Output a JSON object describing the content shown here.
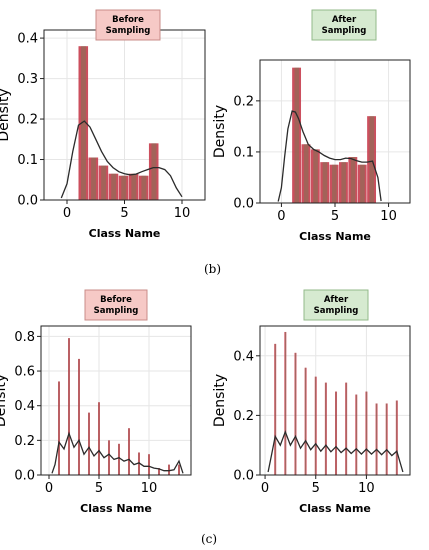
{
  "figure": {
    "panel_labels": [
      "(b)",
      "(c)"
    ]
  },
  "colors": {
    "before_badge_bg": "#f6c9c6",
    "before_badge_border": "#c98c88",
    "after_badge_bg": "#d6ead0",
    "after_badge_border": "#93b98a",
    "bar_fill": "#c73c4d",
    "bar_overlay": "#6f7d55",
    "kde_line": "#2b2b2b",
    "grid": "#e6e6e6",
    "axis": "#222222"
  },
  "chart_data": [
    {
      "id": "b-before",
      "type": "bar",
      "badge": "Before\nSampling",
      "badge_style": "before",
      "xlabel": "Class Name",
      "ylabel": "Density",
      "xlim": [
        -2,
        12
      ],
      "ylim": [
        0,
        0.42
      ],
      "xticks": [
        0,
        5,
        10
      ],
      "yticks": [
        0.0,
        0.1,
        0.2,
        0.3,
        0.4
      ],
      "ytick_labels": [
        "0.0",
        "0.1",
        "0.2",
        "0.3",
        "0.4"
      ],
      "bin_edges": [
        1,
        1.875,
        2.75,
        3.625,
        4.5,
        5.375,
        6.25,
        7.125,
        8,
        8.875
      ],
      "values": [
        0.38,
        0.105,
        0.085,
        0.065,
        0.06,
        0.065,
        0.06,
        0.14,
        0
      ],
      "kde": {
        "x": [
          -0.5,
          0,
          0.5,
          1,
          1.5,
          2,
          2.5,
          3,
          3.5,
          4,
          4.5,
          5,
          5.5,
          6,
          6.5,
          7,
          7.5,
          8,
          8.5,
          9,
          9.5,
          10
        ],
        "y": [
          0.005,
          0.04,
          0.12,
          0.185,
          0.195,
          0.18,
          0.15,
          0.12,
          0.095,
          0.08,
          0.07,
          0.065,
          0.062,
          0.064,
          0.07,
          0.075,
          0.08,
          0.08,
          0.075,
          0.06,
          0.03,
          0.008
        ]
      }
    },
    {
      "id": "b-after",
      "type": "bar",
      "badge": "After\nSampling",
      "badge_style": "after",
      "xlabel": "Class Name",
      "ylabel": "Density",
      "xlim": [
        -2,
        12
      ],
      "ylim": [
        0,
        0.28
      ],
      "xticks": [
        0,
        5,
        10
      ],
      "yticks": [
        0.0,
        0.1,
        0.2
      ],
      "ytick_labels": [
        "0.0",
        "0.1",
        "0.2"
      ],
      "bin_edges": [
        1,
        1.875,
        2.75,
        3.625,
        4.5,
        5.375,
        6.25,
        7.125,
        8,
        8.875
      ],
      "values": [
        0.265,
        0.115,
        0.105,
        0.08,
        0.075,
        0.08,
        0.09,
        0.075,
        0.17
      ],
      "kde": {
        "x": [
          -0.3,
          0,
          0.3,
          0.6,
          1,
          1.3,
          1.6,
          2,
          2.5,
          3,
          3.5,
          4,
          4.5,
          5,
          5.5,
          6,
          6.5,
          7,
          7.5,
          8,
          8.5,
          9,
          9.3
        ],
        "y": [
          0.003,
          0.03,
          0.09,
          0.145,
          0.18,
          0.178,
          0.165,
          0.14,
          0.115,
          0.105,
          0.1,
          0.093,
          0.088,
          0.085,
          0.085,
          0.088,
          0.087,
          0.083,
          0.08,
          0.08,
          0.082,
          0.05,
          0.004
        ]
      }
    },
    {
      "id": "c-before",
      "type": "bar",
      "badge": "Before\nSampling",
      "badge_style": "before",
      "xlabel": "Class Name",
      "ylabel": "Density",
      "xlim": [
        -0.8,
        14.2
      ],
      "ylim": [
        0,
        0.86
      ],
      "xticks": [
        0,
        5,
        10
      ],
      "yticks": [
        0.0,
        0.2,
        0.4,
        0.6,
        0.8
      ],
      "ytick_labels": [
        "0.0",
        "0.2",
        "0.4",
        "0.6",
        "0.8"
      ],
      "spikes_x": [
        1,
        2,
        3,
        4,
        5,
        6,
        7,
        8,
        9,
        10,
        11,
        12,
        13
      ],
      "values": [
        0.54,
        0.79,
        0.67,
        0.36,
        0.42,
        0.2,
        0.18,
        0.27,
        0.13,
        0.12,
        0.04,
        0.06,
        0.06
      ],
      "kde": {
        "x": [
          0.3,
          0.6,
          1,
          1.5,
          2,
          2.5,
          3,
          3.5,
          4,
          4.5,
          5,
          5.5,
          6,
          6.5,
          7,
          7.5,
          8,
          8.5,
          9,
          9.5,
          10,
          10.5,
          11,
          11.5,
          12,
          12.5,
          13,
          13.4
        ],
        "y": [
          0.01,
          0.06,
          0.19,
          0.15,
          0.24,
          0.16,
          0.2,
          0.12,
          0.16,
          0.11,
          0.14,
          0.1,
          0.12,
          0.09,
          0.1,
          0.08,
          0.09,
          0.06,
          0.07,
          0.05,
          0.05,
          0.04,
          0.035,
          0.025,
          0.025,
          0.03,
          0.08,
          0.01
        ]
      }
    },
    {
      "id": "c-after",
      "type": "bar",
      "badge": "After\nSampling",
      "badge_style": "after",
      "xlabel": "Class Name",
      "ylabel": "Density",
      "xlim": [
        -0.5,
        14.3
      ],
      "ylim": [
        0,
        0.5
      ],
      "xticks": [
        0,
        5,
        10
      ],
      "yticks": [
        0.0,
        0.2,
        0.4
      ],
      "ytick_labels": [
        "0.0",
        "0.2",
        "0.4"
      ],
      "spikes_x": [
        1,
        2,
        3,
        4,
        5,
        6,
        7,
        8,
        9,
        10,
        11,
        12,
        13
      ],
      "values": [
        0.44,
        0.48,
        0.41,
        0.36,
        0.33,
        0.31,
        0.28,
        0.31,
        0.27,
        0.28,
        0.24,
        0.24,
        0.25
      ],
      "kde": {
        "x": [
          0.3,
          0.6,
          1,
          1.5,
          2,
          2.5,
          3,
          3.5,
          4,
          4.5,
          5,
          5.5,
          6,
          6.5,
          7,
          7.5,
          8,
          8.5,
          9,
          9.5,
          10,
          10.5,
          11,
          11.5,
          12,
          12.5,
          13,
          13.6
        ],
        "y": [
          0.01,
          0.06,
          0.13,
          0.1,
          0.145,
          0.1,
          0.13,
          0.09,
          0.115,
          0.085,
          0.105,
          0.08,
          0.1,
          0.078,
          0.095,
          0.075,
          0.09,
          0.072,
          0.088,
          0.07,
          0.087,
          0.07,
          0.086,
          0.068,
          0.085,
          0.065,
          0.08,
          0.01
        ]
      }
    }
  ]
}
